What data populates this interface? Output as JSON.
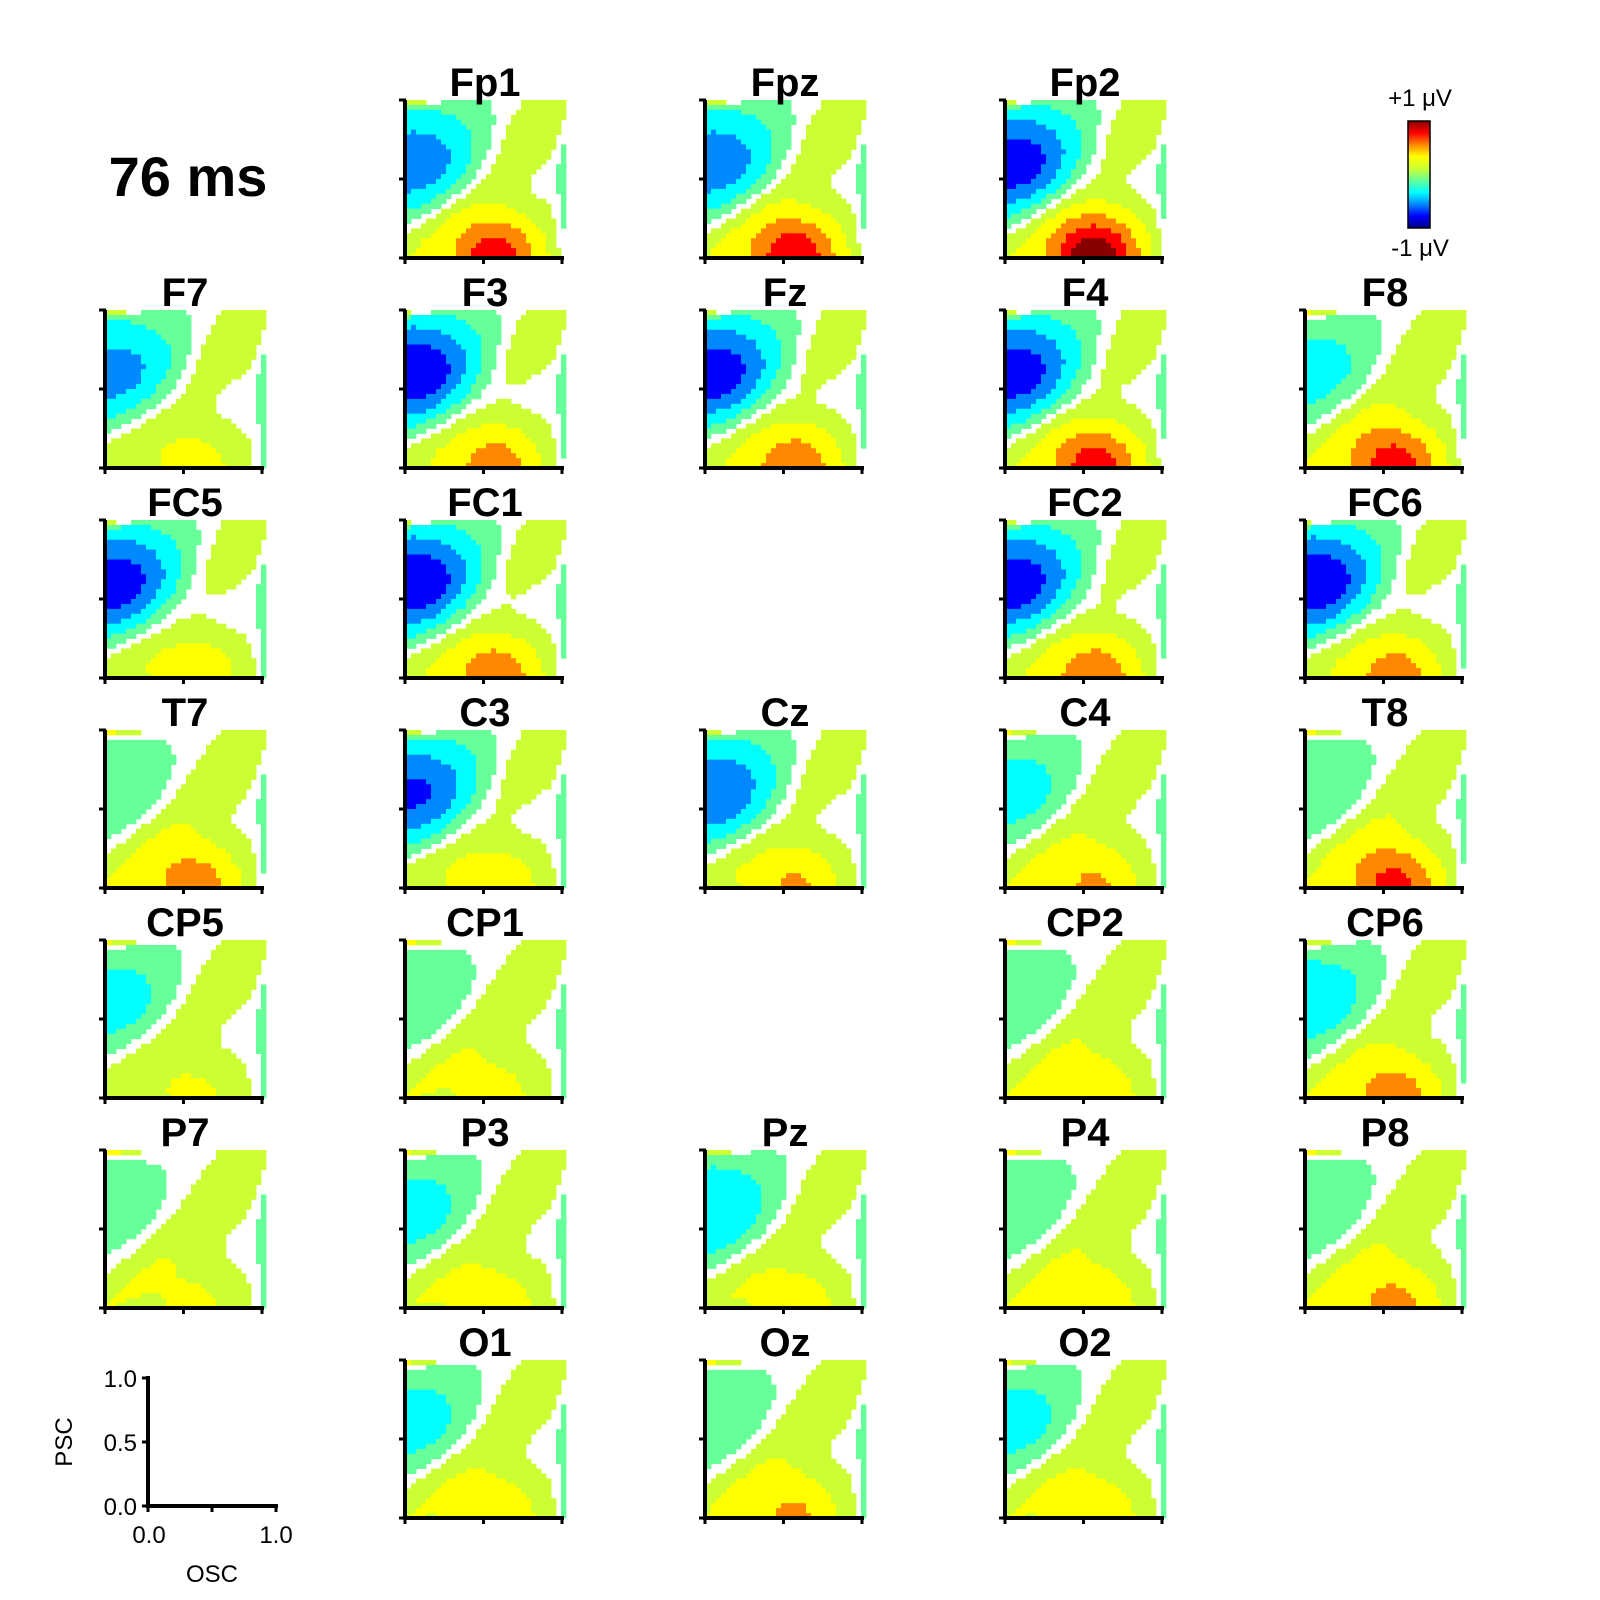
{
  "time_label": "76 ms",
  "colorbar": {
    "max_label": "+1 μV",
    "min_label": "-1 μV",
    "stops": [
      "#000088",
      "#0000ff",
      "#0088ff",
      "#00ffff",
      "#66ff99",
      "#ccff33",
      "#ffff00",
      "#ff8800",
      "#ff0000",
      "#880000"
    ]
  },
  "chart_data": {
    "type": "heatmap",
    "xlabel": "OSC",
    "ylabel": "PSC",
    "xlim": [
      0.0,
      1.0
    ],
    "ylim": [
      0.0,
      1.0
    ],
    "x_ticks": [
      "0.0",
      "1.0"
    ],
    "y_ticks": [
      "0.0",
      "0.5",
      "1.0"
    ],
    "value_range": [
      -1,
      1
    ],
    "unit": "μV",
    "panels": [
      {
        "name": "Fp1",
        "row": 0,
        "col": 1,
        "neg": -0.55,
        "pos": 0.75
      },
      {
        "name": "Fpz",
        "row": 0,
        "col": 2,
        "neg": -0.55,
        "pos": 0.8
      },
      {
        "name": "Fp2",
        "row": 0,
        "col": 3,
        "neg": -0.75,
        "pos": 1.0
      },
      {
        "name": "F7",
        "row": 1,
        "col": 0,
        "neg": -0.5,
        "pos": 0.3
      },
      {
        "name": "F3",
        "row": 1,
        "col": 1,
        "neg": -0.8,
        "pos": 0.55
      },
      {
        "name": "Fz",
        "row": 1,
        "col": 2,
        "neg": -0.75,
        "pos": 0.6
      },
      {
        "name": "F4",
        "row": 1,
        "col": 3,
        "neg": -0.75,
        "pos": 0.75
      },
      {
        "name": "F8",
        "row": 1,
        "col": 4,
        "neg": -0.3,
        "pos": 0.75
      },
      {
        "name": "FC5",
        "row": 2,
        "col": 0,
        "neg": -0.75,
        "pos": 0.4
      },
      {
        "name": "FC1",
        "row": 2,
        "col": 1,
        "neg": -0.8,
        "pos": 0.6
      },
      {
        "name": "FC2",
        "row": 2,
        "col": 3,
        "neg": -0.75,
        "pos": 0.6
      },
      {
        "name": "FC6",
        "row": 2,
        "col": 4,
        "neg": -0.8,
        "pos": 0.55
      },
      {
        "name": "T7",
        "row": 3,
        "col": 0,
        "neg": -0.2,
        "pos": 0.55
      },
      {
        "name": "C3",
        "row": 3,
        "col": 1,
        "neg": -0.65,
        "pos": 0.4
      },
      {
        "name": "Cz",
        "row": 3,
        "col": 2,
        "neg": -0.6,
        "pos": 0.45
      },
      {
        "name": "C4",
        "row": 3,
        "col": 3,
        "neg": -0.3,
        "pos": 0.45
      },
      {
        "name": "T8",
        "row": 3,
        "col": 4,
        "neg": -0.2,
        "pos": 0.7
      },
      {
        "name": "CP5",
        "row": 4,
        "col": 0,
        "neg": -0.3,
        "pos": 0.25
      },
      {
        "name": "CP1",
        "row": 4,
        "col": 1,
        "neg": -0.2,
        "pos": 0.3
      },
      {
        "name": "CP2",
        "row": 4,
        "col": 3,
        "neg": -0.2,
        "pos": 0.4
      },
      {
        "name": "CP6",
        "row": 4,
        "col": 4,
        "neg": -0.35,
        "pos": 0.55
      },
      {
        "name": "P7",
        "row": 5,
        "col": 0,
        "neg": -0.15,
        "pos": 0.25
      },
      {
        "name": "P3",
        "row": 5,
        "col": 1,
        "neg": -0.3,
        "pos": 0.35
      },
      {
        "name": "Pz",
        "row": 5,
        "col": 2,
        "neg": -0.4,
        "pos": 0.35
      },
      {
        "name": "P4",
        "row": 5,
        "col": 3,
        "neg": -0.2,
        "pos": 0.4
      },
      {
        "name": "P8",
        "row": 5,
        "col": 4,
        "neg": -0.2,
        "pos": 0.5
      },
      {
        "name": "O1",
        "row": 6,
        "col": 1,
        "neg": -0.3,
        "pos": 0.4
      },
      {
        "name": "Oz",
        "row": 6,
        "col": 2,
        "neg": -0.2,
        "pos": 0.45
      },
      {
        "name": "O2",
        "row": 6,
        "col": 3,
        "neg": -0.3,
        "pos": 0.4
      }
    ]
  }
}
